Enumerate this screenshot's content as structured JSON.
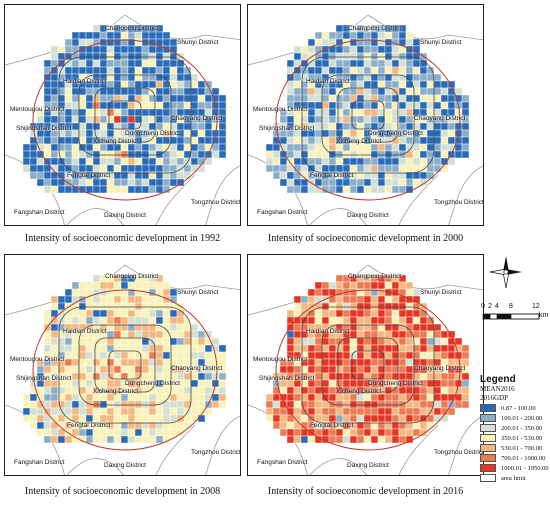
{
  "colors": {
    "classes": [
      "#2a6bb7",
      "#8aaec9",
      "#d2dfd2",
      "#f8f1b8",
      "#f3b77f",
      "#ec7a52",
      "#e63524"
    ],
    "limit": "#c0392b",
    "ring": "#444444"
  },
  "maps": [
    {
      "year": "1992",
      "caption": "Intensity of socioeconomic development in 1992",
      "weights": [
        0.42,
        0.14,
        0.12,
        0.12,
        0.11,
        0.07,
        0.02
      ]
    },
    {
      "year": "2000",
      "caption": "Intensity of socioeconomic development in 2000",
      "weights": [
        0.3,
        0.18,
        0.16,
        0.15,
        0.12,
        0.07,
        0.02
      ]
    },
    {
      "year": "2008",
      "caption": "Intensity of socioeconomic development in 2008",
      "weights": [
        0.08,
        0.06,
        0.12,
        0.36,
        0.22,
        0.12,
        0.04
      ]
    },
    {
      "year": "2016",
      "caption": "Intensity of socioeconomic development in 2016",
      "weights": [
        0.02,
        0.02,
        0.04,
        0.08,
        0.14,
        0.2,
        0.5
      ]
    }
  ],
  "districts": {
    "changping": "Changping District",
    "shunyi": "Shunyi District",
    "haidian": "Haidian District",
    "mentougou": "Mentougou District",
    "shijingshan": "Shijingshan District",
    "xicheng": "Xicheng District",
    "dongcheng": "Dongcheng District",
    "chaoyang": "Chaoyang District",
    "fengtai": "Fengtai District",
    "tongzhou": "Tongzhou District",
    "fangshan": "Fangshan District",
    "daxing": "Daxing District"
  },
  "scale_bar": {
    "ticks": [
      "0",
      "2",
      "4",
      "8",
      "12"
    ],
    "unit": "km"
  },
  "legend": {
    "title": "Legend",
    "field": "MEAN2016",
    "subfield": "2016GDP",
    "classes": [
      "0.87 - 100.00",
      "100.01 - 200.00",
      "200.01 - 350.00",
      "350.01 - 530.00",
      "530.01 - 700.00",
      "700.01 - 1000.00",
      "1000.01 - 1950.00"
    ],
    "area_limit": "area limit"
  }
}
